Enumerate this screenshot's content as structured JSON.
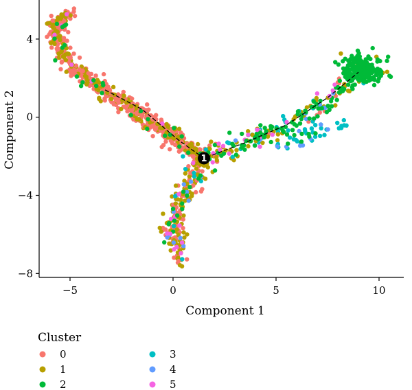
{
  "chart_data": {
    "type": "scatter",
    "title": "",
    "xlabel": "Component 1",
    "ylabel": "Component 2",
    "xlim": [
      -6.5,
      11.2
    ],
    "ylim": [
      -8.2,
      6.0
    ],
    "x_ticks": [
      -5,
      0,
      5,
      10
    ],
    "y_ticks": [
      -8,
      -4,
      0,
      4
    ],
    "x_tick_labels": [
      "−5",
      "0",
      "5",
      "10"
    ],
    "y_tick_labels": [
      "−8",
      "−4",
      "0",
      "4"
    ],
    "grid": false,
    "legend_title": "Cluster",
    "legend_position": "bottom-left",
    "series": [
      {
        "name": "0",
        "color": "#F8766D"
      },
      {
        "name": "1",
        "color": "#B79F00"
      },
      {
        "name": "2",
        "color": "#00BA38"
      },
      {
        "name": "3",
        "color": "#00BFC4"
      },
      {
        "name": "4",
        "color": "#619CFF"
      },
      {
        "name": "5",
        "color": "#F564E3"
      }
    ],
    "trajectory": [
      [
        -3.3,
        1.4
      ],
      [
        -1.5,
        0.4
      ],
      [
        0.3,
        -1.2
      ],
      [
        1.5,
        -2.1
      ],
      [
        3.5,
        -1.3
      ],
      [
        5.5,
        -0.4
      ],
      [
        7.5,
        1.0
      ],
      [
        9.0,
        2.3
      ]
    ],
    "branch_point": {
      "label": "1",
      "x": 1.5,
      "y": -2.1
    }
  }
}
